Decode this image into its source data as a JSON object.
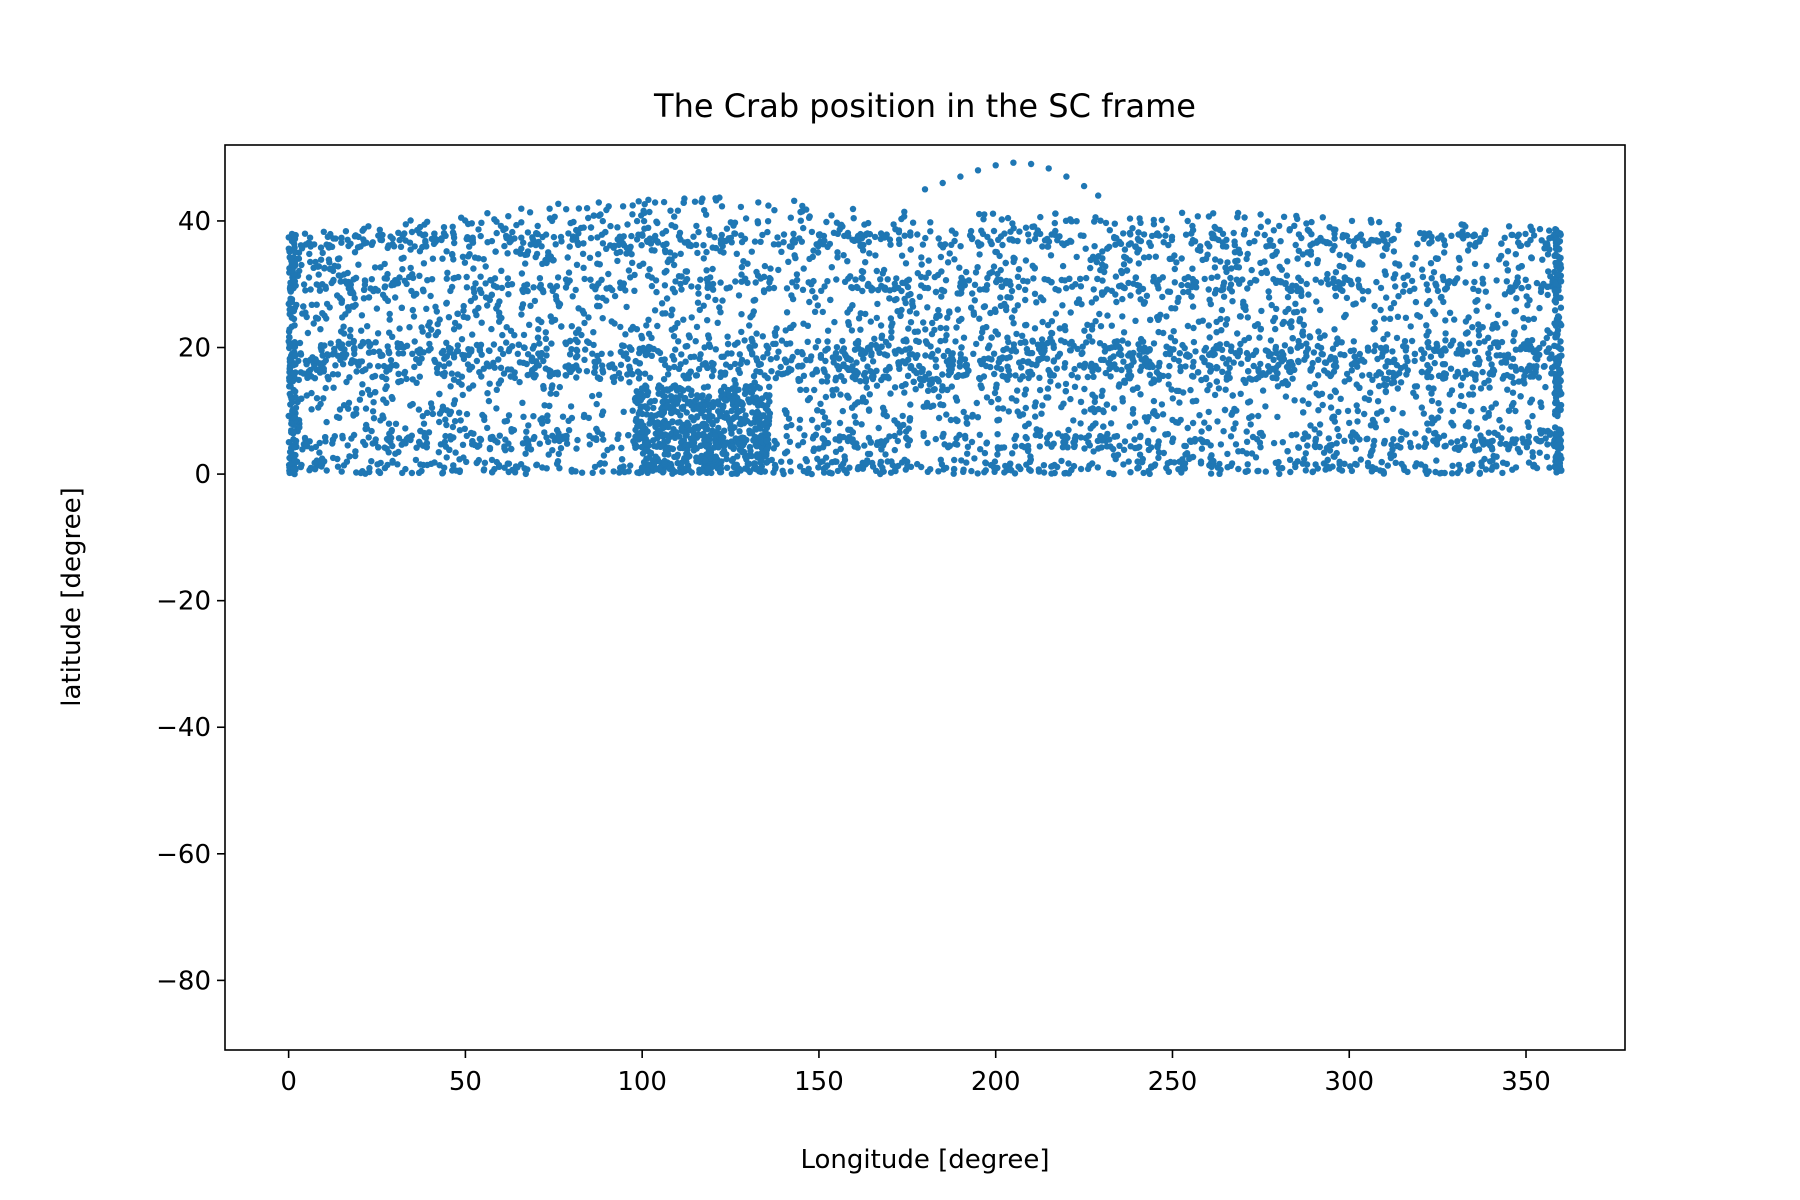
{
  "chart_data": {
    "type": "scatter",
    "title": "The Crab position in the SC frame",
    "xlabel": "Longitude [degree]",
    "ylabel": "latitude [degree]",
    "xlim": [
      -18,
      378
    ],
    "ylim": [
      -91,
      52
    ],
    "xticks": [
      0,
      50,
      100,
      150,
      200,
      250,
      300,
      350
    ],
    "yticks": [
      -80,
      -60,
      -40,
      -20,
      0,
      20,
      40
    ],
    "xtick_labels": [
      "0",
      "50",
      "100",
      "150",
      "200",
      "250",
      "300",
      "350"
    ],
    "ytick_labels": [
      "−80",
      "−60",
      "−40",
      "−20",
      "0",
      "20",
      "40"
    ],
    "grid": false,
    "marker_color": "#1f77b4",
    "series": [
      {
        "band": {
          "x_range": [
            0,
            360
          ],
          "y_range": [
            0,
            40
          ]
        },
        "upper_envelope": [
          [
            0,
            38
          ],
          [
            20,
            39
          ],
          [
            40,
            40.5
          ],
          [
            60,
            41.5
          ],
          [
            80,
            43
          ],
          [
            100,
            43.5
          ],
          [
            120,
            44
          ],
          [
            140,
            43.5
          ],
          [
            160,
            42
          ],
          [
            180,
            42
          ],
          [
            200,
            41.5
          ],
          [
            220,
            41.5
          ],
          [
            240,
            41
          ],
          [
            260,
            41.5
          ],
          [
            280,
            41
          ],
          [
            300,
            40.5
          ],
          [
            320,
            40
          ],
          [
            340,
            39.5
          ],
          [
            360,
            39
          ]
        ],
        "arc": [
          [
            180,
            45
          ],
          [
            185,
            46
          ],
          [
            190,
            47
          ],
          [
            195,
            48
          ],
          [
            200,
            48.8
          ],
          [
            205,
            49.2
          ],
          [
            210,
            49
          ],
          [
            215,
            48.3
          ],
          [
            220,
            47
          ],
          [
            225,
            45.5
          ],
          [
            229,
            44
          ]
        ],
        "dense_rows": [
          1,
          5,
          16,
          18,
          20,
          30,
          37
        ]
      }
    ]
  }
}
